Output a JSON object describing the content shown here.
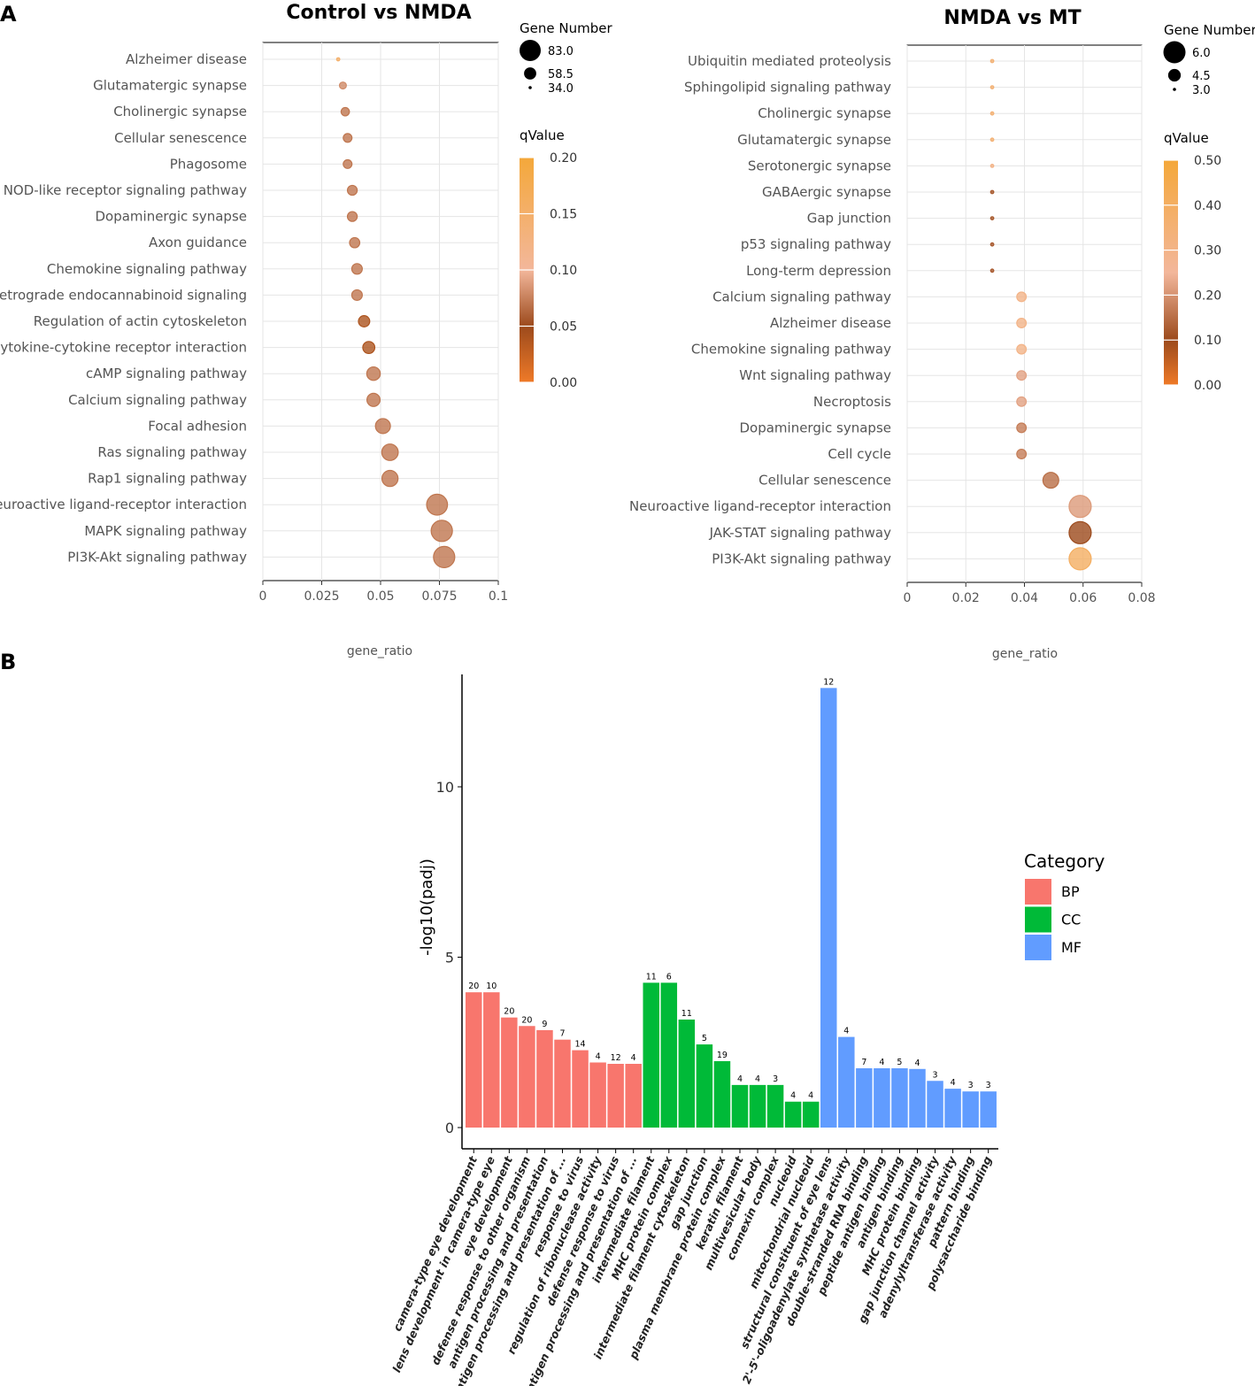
{
  "panel_labels": [
    "A",
    "B"
  ],
  "chart_data": [
    {
      "type": "scatter",
      "title": "Control vs NMDA",
      "xlabel": "gene_ratio",
      "ylabel": "",
      "xlim": [
        0,
        0.1
      ],
      "xticks": [
        0,
        0.025,
        0.05,
        0.075,
        0.1
      ],
      "xtick_labels": [
        "0",
        "0.025",
        "0.05",
        "0.075",
        "0.1"
      ],
      "size_legend_title": "Gene Number",
      "size_legend": [
        83.0,
        58.5,
        34.0
      ],
      "size_legend_labels": [
        "83.0",
        "58.5",
        "34.0"
      ],
      "color_legend_title": "qValue",
      "color_range": [
        0,
        0.2
      ],
      "color_ticks": [
        "0.20",
        "0.15",
        "0.10",
        "0.05",
        "0.00"
      ],
      "color_tick_values": [
        0.2,
        0.15,
        0.1,
        0.05,
        0.0
      ],
      "terms": [
        {
          "name": "Alzheimer disease",
          "ratio": 0.032,
          "count": 34,
          "q": 0.15
        },
        {
          "name": "Glutamatergic synapse",
          "ratio": 0.034,
          "count": 44,
          "q": 0.08
        },
        {
          "name": "Cholinergic synapse",
          "ratio": 0.035,
          "count": 48,
          "q": 0.07
        },
        {
          "name": "Cellular senescence",
          "ratio": 0.036,
          "count": 49,
          "q": 0.07
        },
        {
          "name": "Phagosome",
          "ratio": 0.036,
          "count": 49,
          "q": 0.07
        },
        {
          "name": "NOD-like receptor signaling pathway",
          "ratio": 0.038,
          "count": 52,
          "q": 0.07
        },
        {
          "name": "Dopaminergic synapse",
          "ratio": 0.038,
          "count": 52,
          "q": 0.07
        },
        {
          "name": "Axon guidance",
          "ratio": 0.039,
          "count": 53,
          "q": 0.07
        },
        {
          "name": "Chemokine signaling pathway",
          "ratio": 0.04,
          "count": 54,
          "q": 0.07
        },
        {
          "name": "Retrograde endocannabinoid signaling",
          "ratio": 0.04,
          "count": 54,
          "q": 0.07
        },
        {
          "name": "Regulation of actin cytoskeleton",
          "ratio": 0.043,
          "count": 56,
          "q": 0.04
        },
        {
          "name": "Cytokine-cytokine receptor interaction",
          "ratio": 0.045,
          "count": 58,
          "q": 0.04
        },
        {
          "name": "cAMP signaling pathway",
          "ratio": 0.047,
          "count": 62,
          "q": 0.07
        },
        {
          "name": "Calcium signaling pathway",
          "ratio": 0.047,
          "count": 61,
          "q": 0.07
        },
        {
          "name": "Focal adhesion",
          "ratio": 0.051,
          "count": 66,
          "q": 0.07
        },
        {
          "name": "Ras signaling pathway",
          "ratio": 0.054,
          "count": 70,
          "q": 0.07
        },
        {
          "name": "Rap1 signaling pathway",
          "ratio": 0.054,
          "count": 69,
          "q": 0.07
        },
        {
          "name": "Neuroactive ligand-receptor interaction",
          "ratio": 0.074,
          "count": 82,
          "q": 0.07
        },
        {
          "name": "MAPK signaling pathway",
          "ratio": 0.076,
          "count": 83,
          "q": 0.07
        },
        {
          "name": "PI3K-Akt signaling pathway",
          "ratio": 0.077,
          "count": 83,
          "q": 0.07
        }
      ]
    },
    {
      "type": "scatter",
      "title": "NMDA vs MT",
      "xlabel": "gene_ratio",
      "ylabel": "",
      "xlim": [
        0,
        0.08
      ],
      "xticks": [
        0,
        0.02,
        0.04,
        0.06,
        0.08
      ],
      "xtick_labels": [
        "0",
        "0.02",
        "0.04",
        "0.06",
        "0.08"
      ],
      "size_legend_title": "Gene Number",
      "size_legend": [
        6.0,
        4.5,
        3.0
      ],
      "size_legend_labels": [
        "6.0",
        "4.5",
        "3.0"
      ],
      "color_legend_title": "qValue",
      "color_range": [
        0,
        0.5
      ],
      "color_ticks": [
        "0.50",
        "0.40",
        "0.30",
        "0.20",
        "0.10",
        "0.00"
      ],
      "color_tick_values": [
        0.5,
        0.4,
        0.3,
        0.2,
        0.1,
        0.0
      ],
      "terms": [
        {
          "name": "Ubiquitin mediated proteolysis",
          "ratio": 0.029,
          "count": 3,
          "q": 0.35
        },
        {
          "name": "Sphingolipid signaling pathway",
          "ratio": 0.029,
          "count": 3,
          "q": 0.35
        },
        {
          "name": "Cholinergic synapse",
          "ratio": 0.029,
          "count": 3,
          "q": 0.35
        },
        {
          "name": "Glutamatergic synapse",
          "ratio": 0.029,
          "count": 3,
          "q": 0.35
        },
        {
          "name": "Serotonergic synapse",
          "ratio": 0.029,
          "count": 3,
          "q": 0.3
        },
        {
          "name": "GABAergic synapse",
          "ratio": 0.029,
          "count": 3,
          "q": 0.12
        },
        {
          "name": "Gap junction",
          "ratio": 0.029,
          "count": 3,
          "q": 0.12
        },
        {
          "name": "p53 signaling pathway",
          "ratio": 0.029,
          "count": 3,
          "q": 0.12
        },
        {
          "name": "Long-term depression",
          "ratio": 0.029,
          "count": 3,
          "q": 0.12
        },
        {
          "name": "Calcium signaling pathway",
          "ratio": 0.039,
          "count": 4,
          "q": 0.3
        },
        {
          "name": "Alzheimer disease",
          "ratio": 0.039,
          "count": 4,
          "q": 0.3
        },
        {
          "name": "Chemokine signaling pathway",
          "ratio": 0.039,
          "count": 4,
          "q": 0.3
        },
        {
          "name": "Wnt signaling pathway",
          "ratio": 0.039,
          "count": 4,
          "q": 0.22
        },
        {
          "name": "Necroptosis",
          "ratio": 0.039,
          "count": 4,
          "q": 0.22
        },
        {
          "name": "Dopaminergic synapse",
          "ratio": 0.039,
          "count": 4,
          "q": 0.17
        },
        {
          "name": "Cell cycle",
          "ratio": 0.039,
          "count": 4,
          "q": 0.17
        },
        {
          "name": "Cellular senescence",
          "ratio": 0.049,
          "count": 5,
          "q": 0.15
        },
        {
          "name": "Neuroactive ligand-receptor interaction",
          "ratio": 0.059,
          "count": 6,
          "q": 0.21
        },
        {
          "name": "JAK-STAT signaling pathway",
          "ratio": 0.059,
          "count": 6,
          "q": 0.1
        },
        {
          "name": "PI3K-Akt signaling pathway",
          "ratio": 0.059,
          "count": 6,
          "q": 0.4
        }
      ]
    },
    {
      "type": "bar",
      "title": "",
      "xlabel": "",
      "ylabel": "-log10(padj)",
      "ylim": [
        0,
        12.9
      ],
      "yticks": [
        0,
        5,
        10
      ],
      "ytick_labels": [
        "0",
        "5",
        "10"
      ],
      "legend_title": "Category",
      "legend_position": "right",
      "categories_legend": [
        {
          "name": "BP",
          "color": "#f8766d"
        },
        {
          "name": "CC",
          "color": "#00ba38"
        },
        {
          "name": "MF",
          "color": "#619cff"
        }
      ],
      "bars": [
        {
          "term": "camera-type eye development",
          "category": "BP",
          "value": 3.97,
          "count": "20"
        },
        {
          "term": "lens development in camera-type eye",
          "category": "BP",
          "value": 3.97,
          "count": "10"
        },
        {
          "term": "eye development",
          "category": "BP",
          "value": 3.23,
          "count": "20"
        },
        {
          "term": "defense response to other organism",
          "category": "BP",
          "value": 2.98,
          "count": "20"
        },
        {
          "term": "antigen processing and presentation",
          "category": "BP",
          "value": 2.86,
          "count": "9"
        },
        {
          "term": "antigen processing and presentation of ...",
          "category": "BP",
          "value": 2.58,
          "count": "7"
        },
        {
          "term": "response to virus",
          "category": "BP",
          "value": 2.27,
          "count": "14"
        },
        {
          "term": "regulation of ribonuclease activity",
          "category": "BP",
          "value": 1.91,
          "count": "4"
        },
        {
          "term": "defense response to virus",
          "category": "BP",
          "value": 1.87,
          "count": "12"
        },
        {
          "term": "antigen processing and presentation of ...",
          "category": "BP",
          "value": 1.87,
          "count": "4"
        },
        {
          "term": "intermediate filament",
          "category": "CC",
          "value": 4.25,
          "count": "11"
        },
        {
          "term": "MHC protein complex",
          "category": "CC",
          "value": 4.25,
          "count": "6"
        },
        {
          "term": "intermediate filament cytoskeleton",
          "category": "CC",
          "value": 3.17,
          "count": "11"
        },
        {
          "term": "gap junction",
          "category": "CC",
          "value": 2.44,
          "count": "5"
        },
        {
          "term": "plasma membrane protein complex",
          "category": "CC",
          "value": 1.95,
          "count": "19"
        },
        {
          "term": "keratin filament",
          "category": "CC",
          "value": 1.25,
          "count": "4"
        },
        {
          "term": "multivesicular body",
          "category": "CC",
          "value": 1.25,
          "count": "4"
        },
        {
          "term": "connexin complex",
          "category": "CC",
          "value": 1.25,
          "count": "3"
        },
        {
          "term": "nucleoid",
          "category": "CC",
          "value": 0.76,
          "count": "4"
        },
        {
          "term": "mitochondrial nucleoid",
          "category": "CC",
          "value": 0.76,
          "count": "4"
        },
        {
          "term": "structural constituent of eye lens",
          "category": "MF",
          "value": 12.9,
          "count": "12"
        },
        {
          "term": "2'-5'-oligoadenylate synthetase activity",
          "category": "MF",
          "value": 2.66,
          "count": "4"
        },
        {
          "term": "double-stranded RNA binding",
          "category": "MF",
          "value": 1.74,
          "count": "7"
        },
        {
          "term": "peptide antigen binding",
          "category": "MF",
          "value": 1.74,
          "count": "4"
        },
        {
          "term": "antigen binding",
          "category": "MF",
          "value": 1.74,
          "count": "5"
        },
        {
          "term": "MHC protein binding",
          "category": "MF",
          "value": 1.72,
          "count": "4"
        },
        {
          "term": "gap junction channel activity",
          "category": "MF",
          "value": 1.37,
          "count": "3"
        },
        {
          "term": "adenylyltransferase activity",
          "category": "MF",
          "value": 1.14,
          "count": "4"
        },
        {
          "term": "pattern binding",
          "category": "MF",
          "value": 1.06,
          "count": "3"
        },
        {
          "term": "polysaccharide binding",
          "category": "MF",
          "value": 1.06,
          "count": "3"
        }
      ]
    }
  ]
}
